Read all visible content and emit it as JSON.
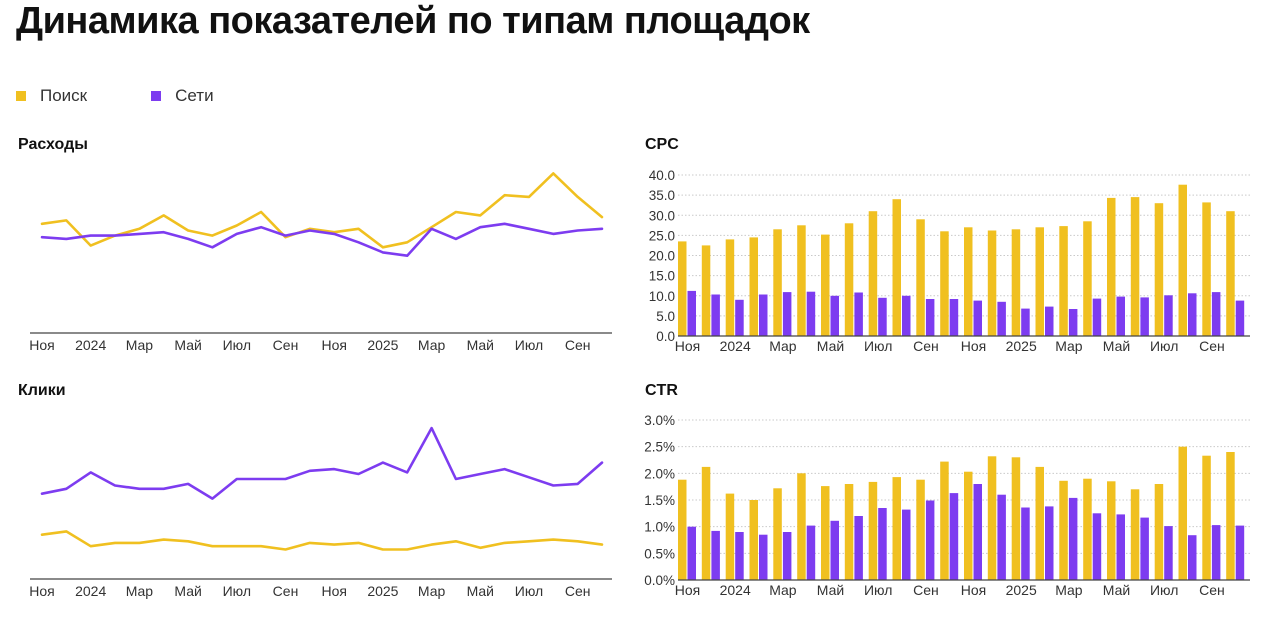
{
  "page": {
    "title": "Динамика показателей по типам площадок"
  },
  "colors": {
    "search": "#f0c020",
    "network": "#7d3cf0",
    "axis": "#444444",
    "grid": "#c9c9c9",
    "tick_text": "#333333"
  },
  "legend": [
    {
      "label": "Поиск",
      "color": "#f0c020"
    },
    {
      "label": "Сети",
      "color": "#7d3cf0"
    }
  ],
  "chart_data": [
    {
      "id": "spend",
      "type": "line",
      "title": "Расходы",
      "x_labels": [
        "Ноя",
        "2024",
        "Мар",
        "Май",
        "Июл",
        "Сен",
        "Ноя",
        "2025",
        "Мар",
        "Май",
        "Июл",
        "Сен"
      ],
      "y_axis_shown": false,
      "ylim": [
        0,
        100
      ],
      "grid": false,
      "series": [
        {
          "name": "Поиск",
          "values": [
            65,
            67,
            52,
            58,
            62,
            70,
            61,
            58,
            64,
            72,
            57,
            62,
            60,
            62,
            51,
            54,
            63,
            72,
            70,
            82,
            81,
            95,
            81,
            69
          ]
        },
        {
          "name": "Сети",
          "values": [
            57,
            56,
            58,
            58,
            59,
            60,
            56,
            51,
            59,
            63,
            58,
            61,
            59,
            54,
            48,
            46,
            62,
            56,
            63,
            65,
            62,
            59,
            61,
            62
          ]
        }
      ]
    },
    {
      "id": "cpc",
      "type": "bar",
      "title": "CPC",
      "x_labels": [
        "Ноя",
        "2024",
        "Мар",
        "Май",
        "Июл",
        "Сен",
        "Ноя",
        "2025",
        "Мар",
        "Май",
        "Июл",
        "Сен"
      ],
      "y_ticks": [
        "0.0",
        "5.0",
        "10.0",
        "15.0",
        "20.0",
        "25.0",
        "30.0",
        "35.0",
        "40.0"
      ],
      "ylim": [
        0,
        40
      ],
      "grid": true,
      "series": [
        {
          "name": "Поиск",
          "values": [
            23.5,
            22.5,
            24,
            24.5,
            26.5,
            27.5,
            25.2,
            28,
            31,
            34,
            29,
            26,
            27,
            26.2,
            26.5,
            27,
            27.3,
            28.5,
            34.3,
            34.5,
            33,
            37.6,
            33.2,
            31
          ]
        },
        {
          "name": "Сети",
          "values": [
            11.2,
            10.3,
            9,
            10.3,
            10.9,
            11,
            10,
            10.8,
            9.5,
            10,
            9.2,
            9.2,
            8.8,
            8.5,
            6.8,
            7.3,
            6.7,
            9.3,
            9.8,
            9.6,
            10.1,
            10.6,
            10.9,
            8.8
          ]
        }
      ]
    },
    {
      "id": "clicks",
      "type": "line",
      "title": "Клики",
      "x_labels": [
        "Ноя",
        "2024",
        "Мар",
        "Май",
        "Июл",
        "Сен",
        "Ноя",
        "2025",
        "Мар",
        "Май",
        "Июл",
        "Сен"
      ],
      "y_axis_shown": false,
      "ylim": [
        0,
        100
      ],
      "grid": false,
      "series": [
        {
          "name": "Поиск",
          "values": [
            27,
            29,
            20,
            22,
            22,
            24,
            23,
            20,
            20,
            20,
            18,
            22,
            21,
            22,
            18,
            18,
            21,
            23,
            19,
            22,
            23,
            24,
            23,
            21
          ]
        },
        {
          "name": "Сети",
          "values": [
            52,
            55,
            65,
            57,
            55,
            55,
            58,
            49,
            61,
            61,
            61,
            66,
            67,
            64,
            71,
            65,
            92,
            61,
            64,
            67,
            62,
            57,
            58,
            71
          ]
        }
      ]
    },
    {
      "id": "ctr",
      "type": "bar",
      "title": "CTR",
      "x_labels": [
        "Ноя",
        "2024",
        "Мар",
        "Май",
        "Июл",
        "Сен",
        "Ноя",
        "2025",
        "Мар",
        "Май",
        "Июл",
        "Сен"
      ],
      "y_ticks": [
        "0.0%",
        "0.5%",
        "1.0%",
        "1.5%",
        "2.0%",
        "2.5%",
        "3.0%"
      ],
      "ylim": [
        0,
        3.0
      ],
      "grid": true,
      "series": [
        {
          "name": "Поиск",
          "values": [
            1.88,
            2.12,
            1.62,
            1.5,
            1.72,
            2.0,
            1.76,
            1.8,
            1.84,
            1.93,
            1.88,
            2.22,
            2.03,
            2.32,
            2.3,
            2.12,
            1.86,
            1.9,
            1.85,
            1.7,
            1.8,
            2.5,
            2.33,
            2.4
          ]
        },
        {
          "name": "Сети",
          "values": [
            1.0,
            0.92,
            0.9,
            0.85,
            0.9,
            1.02,
            1.11,
            1.2,
            1.35,
            1.32,
            1.49,
            1.63,
            1.8,
            1.6,
            1.36,
            1.38,
            1.54,
            1.25,
            1.23,
            1.17,
            1.01,
            0.84,
            1.03,
            1.02
          ]
        }
      ]
    }
  ]
}
